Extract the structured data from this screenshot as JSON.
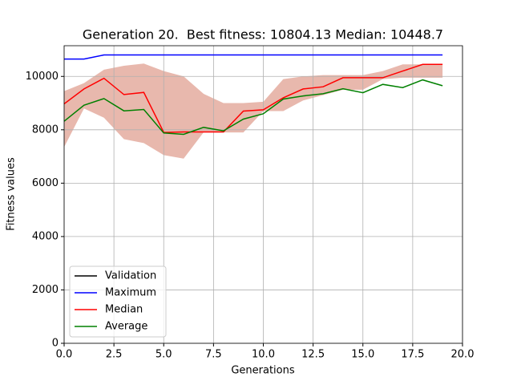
{
  "chart_data": {
    "type": "line",
    "title": "Generation 20.  Best fitness: 10804.13 Median: 10448.7",
    "xlabel": "Generations",
    "ylabel": "Fitness values",
    "x": [
      0,
      1,
      2,
      3,
      4,
      5,
      6,
      7,
      8,
      9,
      10,
      11,
      12,
      13,
      14,
      15,
      16,
      17,
      18,
      19
    ],
    "series": [
      {
        "name": "Validation",
        "color": "#000000",
        "values": [
          null,
          null,
          null,
          null,
          null,
          null,
          null,
          null,
          null,
          null,
          null,
          null,
          null,
          null,
          null,
          null,
          null,
          null,
          null,
          null
        ]
      },
      {
        "name": "Maximum",
        "color": "#0000ff",
        "values": [
          10650,
          10650,
          10804.13,
          10804.13,
          10804.13,
          10804.13,
          10804.13,
          10804.13,
          10804.13,
          10804.13,
          10804.13,
          10804.13,
          10804.13,
          10804.13,
          10804.13,
          10804.13,
          10804.13,
          10804.13,
          10804.13,
          10804.13
        ]
      },
      {
        "name": "Median",
        "color": "#ff0000",
        "values": [
          8970,
          9530,
          9930,
          9320,
          9400,
          7900,
          7920,
          7920,
          7920,
          8700,
          8750,
          9200,
          9530,
          9610,
          9950,
          9950,
          9950,
          10200,
          10448.7,
          10448.7
        ]
      },
      {
        "name": "Average",
        "color": "#008000",
        "values": [
          8320,
          8920,
          9170,
          8710,
          8760,
          7880,
          7830,
          8090,
          7960,
          8400,
          8600,
          9150,
          9270,
          9350,
          9540,
          9390,
          9700,
          9580,
          9870,
          9650
        ]
      }
    ],
    "band": {
      "color": "#e8b8ad",
      "upper": [
        9450,
        9750,
        10250,
        10400,
        10480,
        10200,
        10000,
        9350,
        9000,
        9000,
        9050,
        9900,
        10000,
        10050,
        10050,
        10050,
        10200,
        10450,
        10450,
        10450
      ],
      "lower": [
        7350,
        8800,
        8450,
        7650,
        7500,
        7050,
        6920,
        7900,
        7900,
        7900,
        8700,
        8700,
        9100,
        9300,
        9500,
        9500,
        9900,
        9950,
        9950,
        9950
      ]
    },
    "xlim": [
      0,
      20
    ],
    "xticks": [
      {
        "value": 0,
        "label": "0.0"
      },
      2.5,
      {
        "value": 5,
        "label": "5.0"
      },
      7.5,
      {
        "value": 10,
        "label": "10.0"
      },
      12.5,
      {
        "value": 15,
        "label": "15.0"
      },
      17.5,
      {
        "value": 20,
        "label": "20.0"
      }
    ],
    "ylim": [
      0,
      11150
    ],
    "yticks": [
      0,
      2000,
      4000,
      6000,
      8000,
      10000
    ],
    "grid": true,
    "legend": "lower left"
  }
}
